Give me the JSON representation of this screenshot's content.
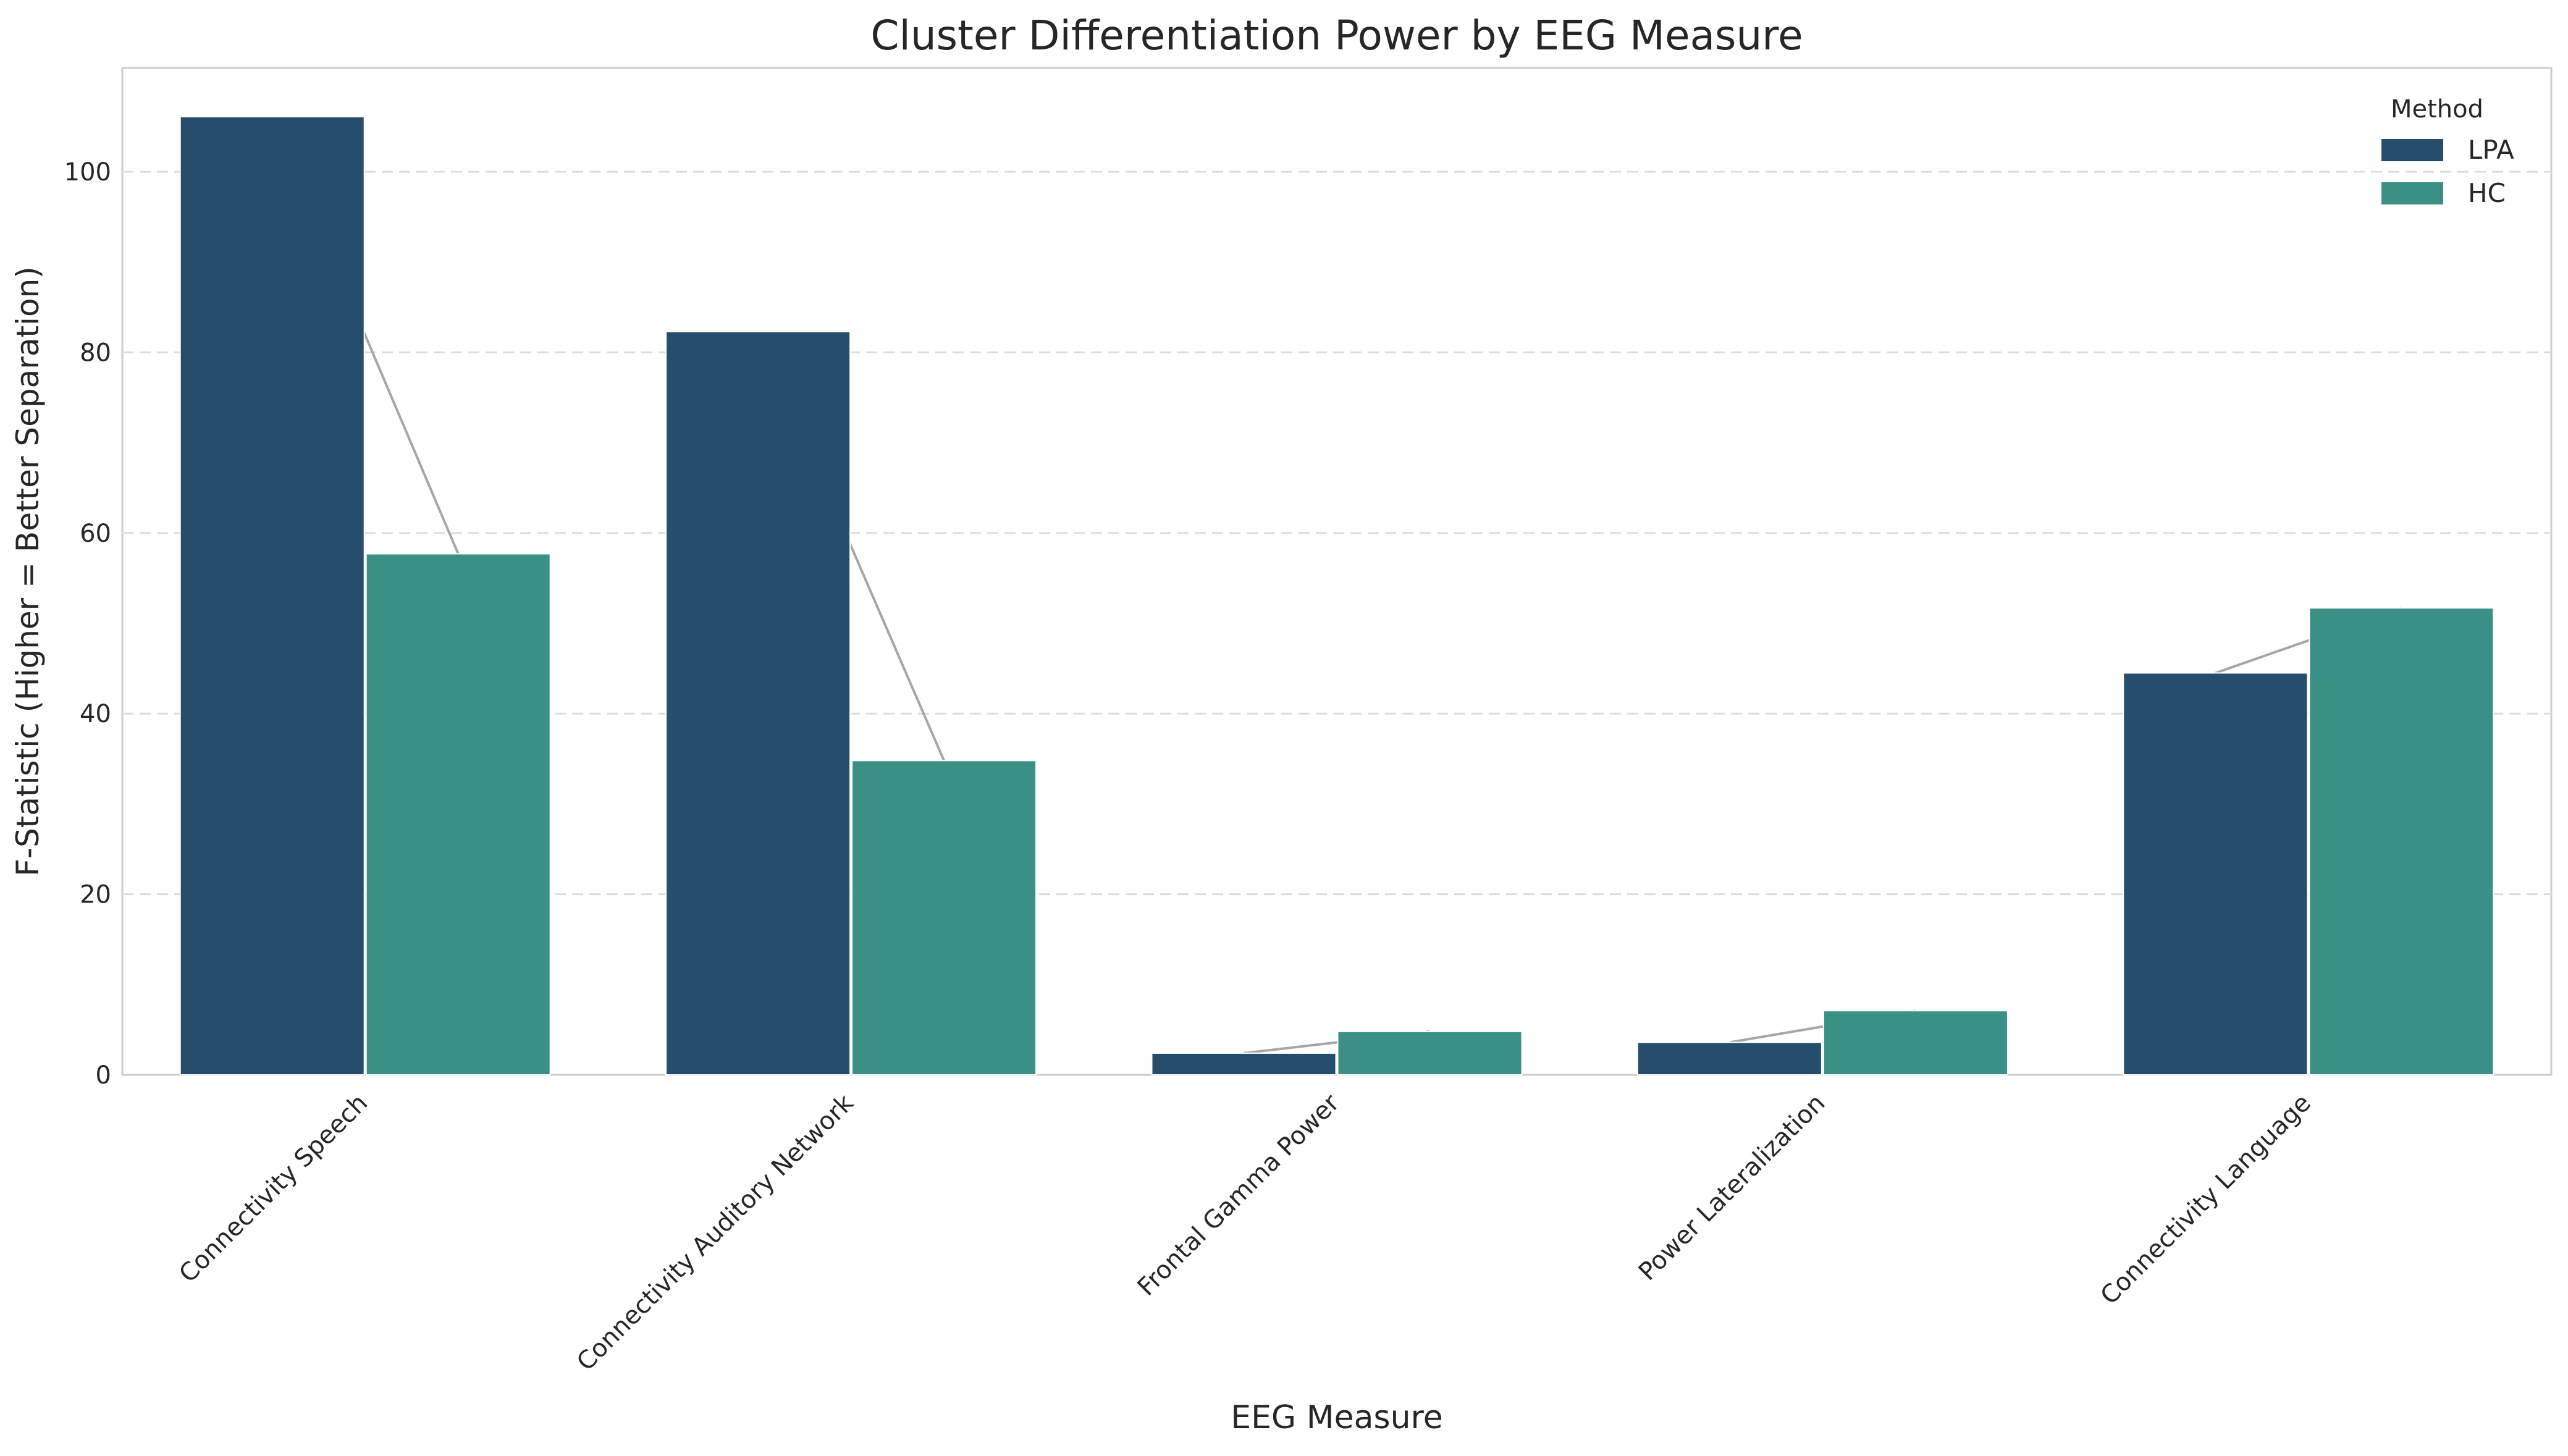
{
  "chart_data": {
    "type": "bar",
    "title": "Cluster Differentiation Power by EEG Measure",
    "xlabel": "EEG Measure",
    "ylabel": "F-Statistic (Higher = Better Separation)",
    "categories": [
      "Connectivity Speech",
      "Connectivity Auditory Network",
      "Frontal Gamma Power",
      "Power Lateralization",
      "Connectivity Language"
    ],
    "series": [
      {
        "name": "LPA",
        "color": "#264d6b",
        "values": [
          106.1,
          82.3,
          2.4,
          3.6,
          44.5
        ]
      },
      {
        "name": "HC",
        "color": "#3a9085",
        "values": [
          57.7,
          34.8,
          4.8,
          7.1,
          51.7
        ]
      }
    ],
    "connector_color": "#a6a6a6",
    "legend": {
      "title": "Method",
      "placement": "top-right"
    },
    "ylim": [
      0,
      111.5
    ],
    "yticks": [
      0,
      20,
      40,
      60,
      80,
      100
    ],
    "grid": "y-dashed"
  }
}
